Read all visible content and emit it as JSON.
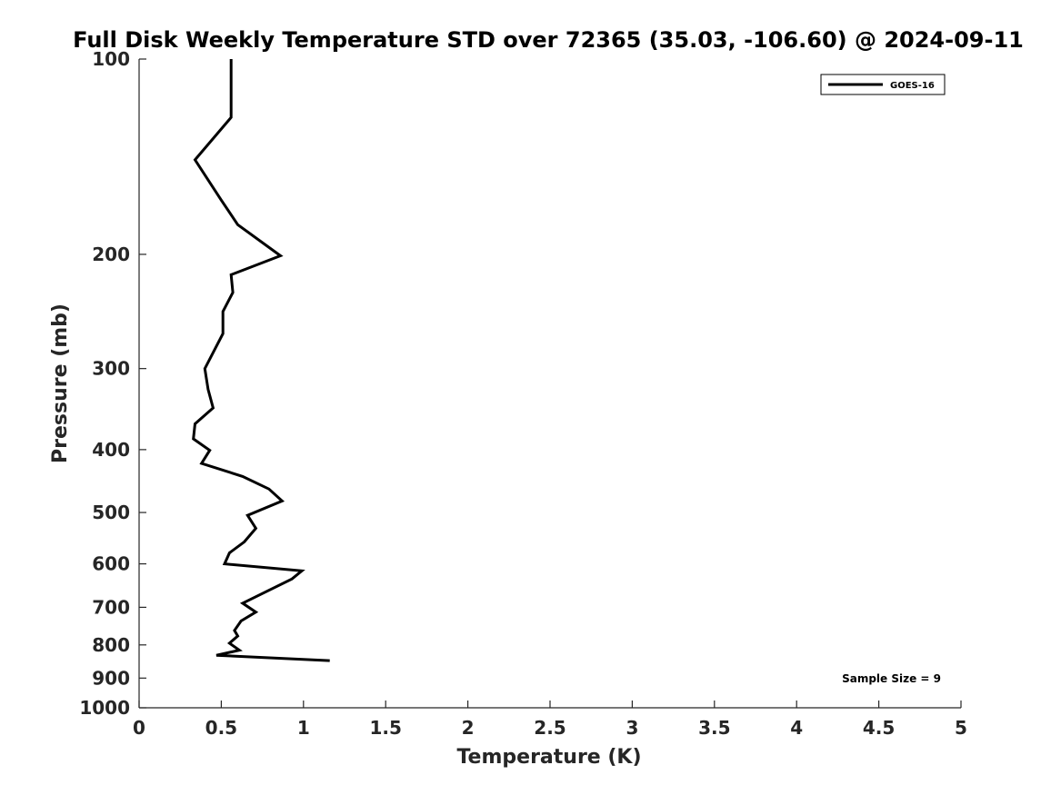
{
  "chart_data": {
    "type": "line",
    "title": "Full Disk Weekly Temperature STD over 72365 (35.03, -106.60) @ 2024-09-11",
    "xlabel": "Temperature (K)",
    "ylabel": "Pressure (mb)",
    "xlim": [
      0,
      5
    ],
    "ylim": [
      1000,
      100
    ],
    "yscale": "log",
    "y_reversed": true,
    "grid": false,
    "legend_position": "top-right",
    "x_ticks": [
      "0",
      "0.5",
      "1",
      "1.5",
      "2",
      "2.5",
      "3",
      "3.5",
      "4",
      "4.5",
      "5"
    ],
    "y_ticks": [
      "100",
      "200",
      "300",
      "400",
      "500",
      "600",
      "700",
      "800",
      "900",
      "1000"
    ],
    "series": [
      {
        "name": "GOES-16",
        "color": "#000000",
        "points": [
          [
            0.56,
            100
          ],
          [
            0.56,
            103
          ],
          [
            0.56,
            107
          ],
          [
            0.56,
            112
          ],
          [
            0.56,
            117
          ],
          [
            0.56,
            123
          ],
          [
            0.34,
            143
          ],
          [
            0.5,
            165
          ],
          [
            0.6,
            180
          ],
          [
            0.86,
            201
          ],
          [
            0.56,
            215
          ],
          [
            0.57,
            229
          ],
          [
            0.51,
            245
          ],
          [
            0.51,
            265
          ],
          [
            0.4,
            300
          ],
          [
            0.42,
            323
          ],
          [
            0.45,
            345
          ],
          [
            0.34,
            365
          ],
          [
            0.33,
            385
          ],
          [
            0.43,
            401
          ],
          [
            0.38,
            420
          ],
          [
            0.63,
            440
          ],
          [
            0.79,
            460
          ],
          [
            0.87,
            480
          ],
          [
            0.66,
            505
          ],
          [
            0.71,
            529
          ],
          [
            0.64,
            555
          ],
          [
            0.55,
            577
          ],
          [
            0.52,
            600
          ],
          [
            0.99,
            615
          ],
          [
            0.93,
            633
          ],
          [
            0.63,
            690
          ],
          [
            0.71,
            712
          ],
          [
            0.62,
            735
          ],
          [
            0.58,
            760
          ],
          [
            0.6,
            775
          ],
          [
            0.55,
            795
          ],
          [
            0.61,
            815
          ],
          [
            0.47,
            830
          ],
          [
            1.16,
            846
          ]
        ]
      }
    ],
    "annotations": [
      "Sample Size = 9"
    ]
  }
}
